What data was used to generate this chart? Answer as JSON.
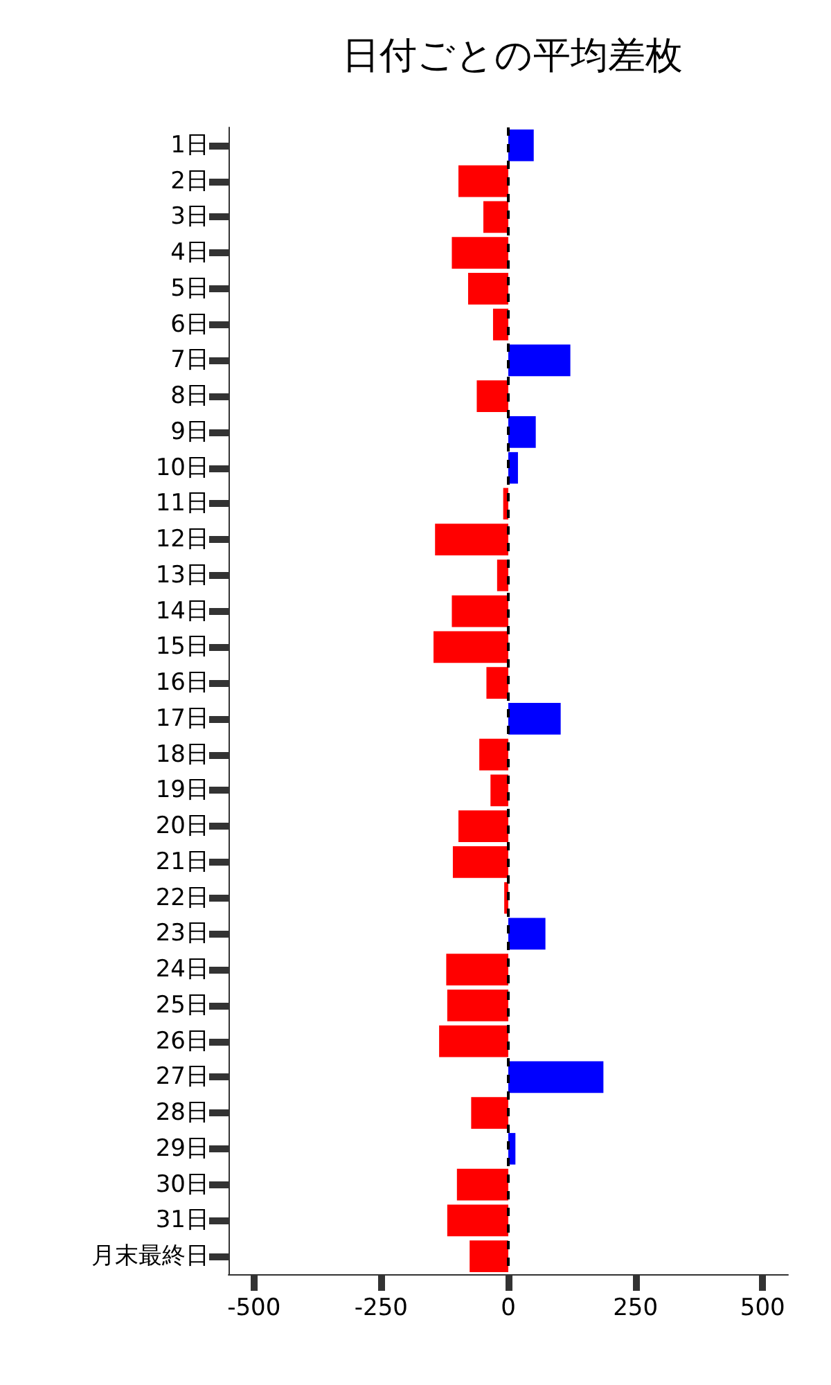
{
  "chart_data": {
    "type": "bar",
    "orientation": "horizontal",
    "title": "日付ごとの平均差枚",
    "categories": [
      "1日",
      "2日",
      "3日",
      "4日",
      "5日",
      "6日",
      "7日",
      "8日",
      "9日",
      "10日",
      "11日",
      "12日",
      "13日",
      "14日",
      "15日",
      "16日",
      "17日",
      "18日",
      "19日",
      "20日",
      "21日",
      "22日",
      "23日",
      "24日",
      "25日",
      "26日",
      "27日",
      "28日",
      "29日",
      "30日",
      "31日",
      "月末最終日"
    ],
    "values": [
      50,
      -98,
      -49,
      -111,
      -79,
      -30,
      122,
      -62,
      54,
      19,
      -10,
      -144,
      -22,
      -111,
      -147,
      -43,
      103,
      -57,
      -35,
      -98,
      -109,
      -8,
      73,
      -122,
      -120,
      -136,
      187,
      -73,
      14,
      -101,
      -120,
      -76
    ],
    "colors": [
      "#0000ff",
      "#ff0000",
      "#ff0000",
      "#ff0000",
      "#ff0000",
      "#ff0000",
      "#0000ff",
      "#ff0000",
      "#0000ff",
      "#0000ff",
      "#ff0000",
      "#ff0000",
      "#ff0000",
      "#ff0000",
      "#ff0000",
      "#ff0000",
      "#0000ff",
      "#ff0000",
      "#ff0000",
      "#ff0000",
      "#ff0000",
      "#ff0000",
      "#0000ff",
      "#ff0000",
      "#ff0000",
      "#ff0000",
      "#0000ff",
      "#ff0000",
      "#0000ff",
      "#ff0000",
      "#ff0000",
      "#ff0000"
    ],
    "xlim": [
      -550,
      550
    ],
    "xticks": [
      -500,
      -250,
      0,
      250,
      500
    ],
    "ref_lines": [
      {
        "axis": "x",
        "value": 0,
        "color": "#000000",
        "line_style": "dashed"
      }
    ],
    "grid": false
  }
}
